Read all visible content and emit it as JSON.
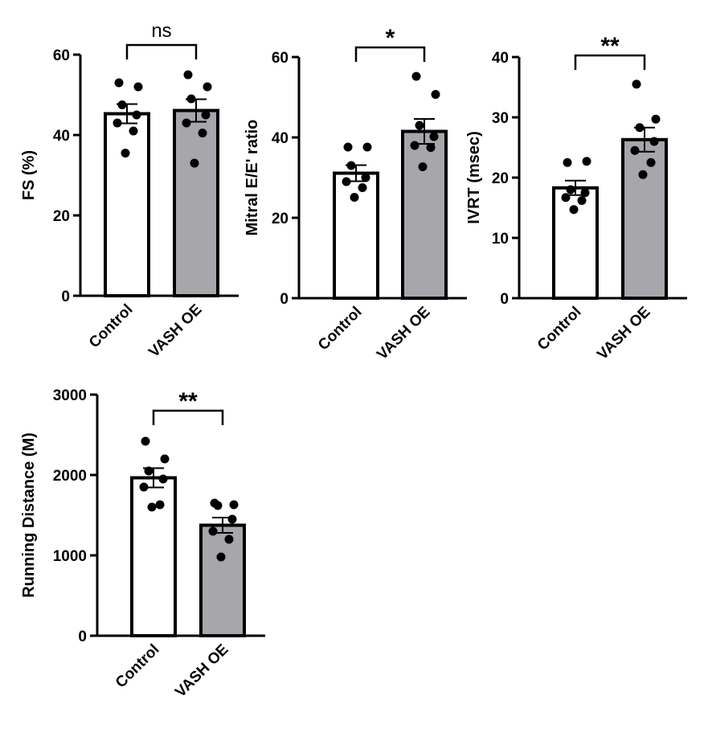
{
  "chart_data": [
    {
      "id": "fs",
      "type": "bar",
      "ylabel": "FS (%)",
      "ylim": [
        0,
        60
      ],
      "yticks": [
        0,
        20,
        40,
        60
      ],
      "categories": [
        "Control",
        "VASH OE"
      ],
      "means": [
        45.3,
        46.1
      ],
      "sem": [
        2.4,
        2.8
      ],
      "points": [
        [
          53,
          52,
          47.5,
          45,
          43,
          41,
          35.5
        ],
        [
          55,
          52,
          49,
          45,
          43,
          40.5,
          33
        ]
      ],
      "bar_colors": [
        "#ffffff",
        "#a6a6ab"
      ],
      "significance": "ns"
    },
    {
      "id": "ee",
      "type": "bar",
      "ylabel": "Mitral E/E' ratio",
      "ylim": [
        0,
        60
      ],
      "yticks": [
        0,
        20,
        40,
        60
      ],
      "categories": [
        "Control",
        "VASH OE"
      ],
      "means": [
        31.1,
        41.5
      ],
      "sem": [
        2.0,
        3.1
      ],
      "points": [
        [
          37.6,
          37.6,
          33,
          30,
          29,
          27.5,
          25.1
        ],
        [
          55.2,
          50.7,
          43,
          40.2,
          38,
          37.5,
          32.7
        ]
      ],
      "bar_colors": [
        "#ffffff",
        "#a6a6ab"
      ],
      "significance": "*"
    },
    {
      "id": "ivrt",
      "type": "bar",
      "ylabel": "IVRT (msec)",
      "ylim": [
        0,
        40
      ],
      "yticks": [
        0,
        10,
        20,
        30,
        40
      ],
      "categories": [
        "Control",
        "VASH OE"
      ],
      "means": [
        18.3,
        26.3
      ],
      "sem": [
        1.2,
        2.0
      ],
      "points": [
        [
          22.5,
          22.7,
          18,
          17.5,
          16.7,
          16.2,
          14.7
        ],
        [
          35.5,
          29.7,
          28.3,
          26,
          24.5,
          22.5,
          20.5
        ]
      ],
      "bar_colors": [
        "#ffffff",
        "#a6a6ab"
      ],
      "significance": "**"
    },
    {
      "id": "run",
      "type": "bar",
      "ylabel": "Running Distance (M)",
      "ylim": [
        0,
        3000
      ],
      "yticks": [
        0,
        1000,
        2000,
        3000
      ],
      "categories": [
        "Control",
        "VASH OE"
      ],
      "means": [
        1965,
        1375
      ],
      "sem": [
        120,
        95
      ],
      "points": [
        [
          2420,
          2200,
          2050,
          1950,
          1850,
          1630,
          1600
        ],
        [
          1650,
          1630,
          1620,
          1450,
          1300,
          1200,
          980
        ]
      ],
      "bar_colors": [
        "#ffffff",
        "#a6a6ab"
      ],
      "significance": "**"
    }
  ]
}
